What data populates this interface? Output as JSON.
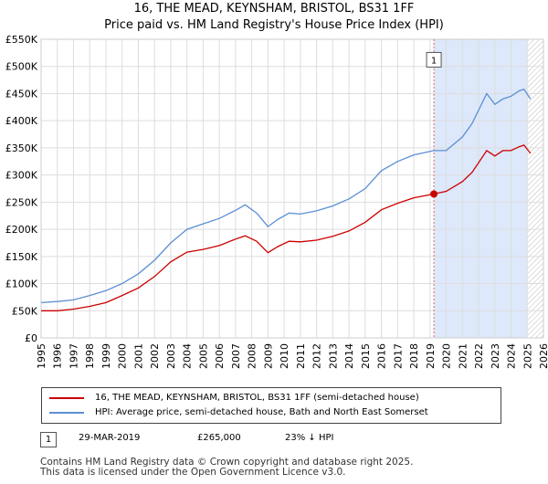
{
  "title_line1": "16, THE MEAD, KEYNSHAM, BRISTOL, BS31 1FF",
  "title_line2": "Price paid vs. HM Land Registry's House Price Index (HPI)",
  "legend": {
    "red_label": "16, THE MEAD, KEYNSHAM, BRISTOL, BS31 1FF (semi-detached house)",
    "blue_label": "HPI: Average price, semi-detached house, Bath and North East Somerset"
  },
  "annotation": {
    "marker": "1",
    "date": "29-MAR-2019",
    "price": "£265,000",
    "delta": "23% ↓ HPI"
  },
  "footer_line1": "Contains HM Land Registry data © Crown copyright and database right 2025.",
  "footer_line2": "This data is licensed under the Open Government Licence v3.0.",
  "colors": {
    "red": "#cc0000",
    "blue": "#5b8fd4",
    "shade": "#dde8fb",
    "grid": "#dddddd"
  },
  "chart_data": {
    "type": "line",
    "title": "16, THE MEAD, KEYNSHAM, BRISTOL, BS31 1FF",
    "subtitle": "Price paid vs. HM Land Registry's House Price Index (HPI)",
    "xlim": [
      1995,
      2026
    ],
    "ylim": [
      0,
      550000
    ],
    "y_ticks": [
      0,
      50000,
      100000,
      150000,
      200000,
      250000,
      300000,
      350000,
      400000,
      450000,
      500000,
      550000
    ],
    "y_tick_labels": [
      "£0",
      "£50K",
      "£100K",
      "£150K",
      "£200K",
      "£250K",
      "£300K",
      "£350K",
      "£400K",
      "£450K",
      "£500K",
      "£550K"
    ],
    "x_ticks": [
      1995,
      1996,
      1997,
      1998,
      1999,
      2000,
      2001,
      2002,
      2003,
      2004,
      2005,
      2006,
      2007,
      2008,
      2009,
      2010,
      2011,
      2012,
      2013,
      2014,
      2015,
      2016,
      2017,
      2018,
      2019,
      2020,
      2021,
      2022,
      2023,
      2024,
      2025,
      2026
    ],
    "shaded_region": [
      2019.24,
      2025.0
    ],
    "hatched_region": [
      2025.0,
      2026
    ],
    "sale_marker": {
      "label": "1",
      "x": 2019.24,
      "y": 265000
    },
    "series": [
      {
        "name": "16, THE MEAD, KEYNSHAM, BRISTOL, BS31 1FF (semi-detached house)",
        "color": "#cc0000",
        "points": [
          [
            1995.0,
            50000
          ],
          [
            1996.0,
            50000
          ],
          [
            1997.0,
            53000
          ],
          [
            1998.0,
            58000
          ],
          [
            1999.0,
            65000
          ],
          [
            2000.0,
            78000
          ],
          [
            2001.0,
            92000
          ],
          [
            2002.0,
            113000
          ],
          [
            2003.0,
            140000
          ],
          [
            2004.0,
            158000
          ],
          [
            2005.0,
            163000
          ],
          [
            2006.0,
            170000
          ],
          [
            2007.0,
            182000
          ],
          [
            2007.6,
            188000
          ],
          [
            2008.3,
            178000
          ],
          [
            2009.0,
            157000
          ],
          [
            2009.6,
            168000
          ],
          [
            2010.3,
            178000
          ],
          [
            2011.0,
            177000
          ],
          [
            2012.0,
            180000
          ],
          [
            2013.0,
            187000
          ],
          [
            2014.0,
            197000
          ],
          [
            2015.0,
            213000
          ],
          [
            2016.0,
            236000
          ],
          [
            2017.0,
            248000
          ],
          [
            2018.0,
            258000
          ],
          [
            2019.24,
            265000
          ],
          [
            2020.0,
            270000
          ],
          [
            2021.0,
            288000
          ],
          [
            2021.6,
            305000
          ],
          [
            2022.5,
            345000
          ],
          [
            2023.0,
            335000
          ],
          [
            2023.5,
            345000
          ],
          [
            2024.0,
            345000
          ],
          [
            2024.5,
            352000
          ],
          [
            2024.8,
            355000
          ],
          [
            2025.2,
            340000
          ]
        ]
      },
      {
        "name": "HPI: Average price, semi-detached house, Bath and North East Somerset",
        "color": "#5b8fd4",
        "points": [
          [
            1995.0,
            65000
          ],
          [
            1996.0,
            67000
          ],
          [
            1997.0,
            70000
          ],
          [
            1998.0,
            78000
          ],
          [
            1999.0,
            87000
          ],
          [
            2000.0,
            100000
          ],
          [
            2001.0,
            118000
          ],
          [
            2002.0,
            143000
          ],
          [
            2003.0,
            175000
          ],
          [
            2004.0,
            200000
          ],
          [
            2005.0,
            210000
          ],
          [
            2006.0,
            220000
          ],
          [
            2007.0,
            235000
          ],
          [
            2007.6,
            245000
          ],
          [
            2008.3,
            230000
          ],
          [
            2009.0,
            205000
          ],
          [
            2009.6,
            218000
          ],
          [
            2010.3,
            230000
          ],
          [
            2011.0,
            228000
          ],
          [
            2012.0,
            234000
          ],
          [
            2013.0,
            243000
          ],
          [
            2014.0,
            256000
          ],
          [
            2015.0,
            275000
          ],
          [
            2016.0,
            308000
          ],
          [
            2017.0,
            325000
          ],
          [
            2018.0,
            337000
          ],
          [
            2019.24,
            345000
          ],
          [
            2020.0,
            345000
          ],
          [
            2021.0,
            370000
          ],
          [
            2021.6,
            395000
          ],
          [
            2022.5,
            450000
          ],
          [
            2023.0,
            430000
          ],
          [
            2023.5,
            440000
          ],
          [
            2024.0,
            445000
          ],
          [
            2024.5,
            455000
          ],
          [
            2024.8,
            458000
          ],
          [
            2025.2,
            440000
          ]
        ]
      }
    ]
  }
}
